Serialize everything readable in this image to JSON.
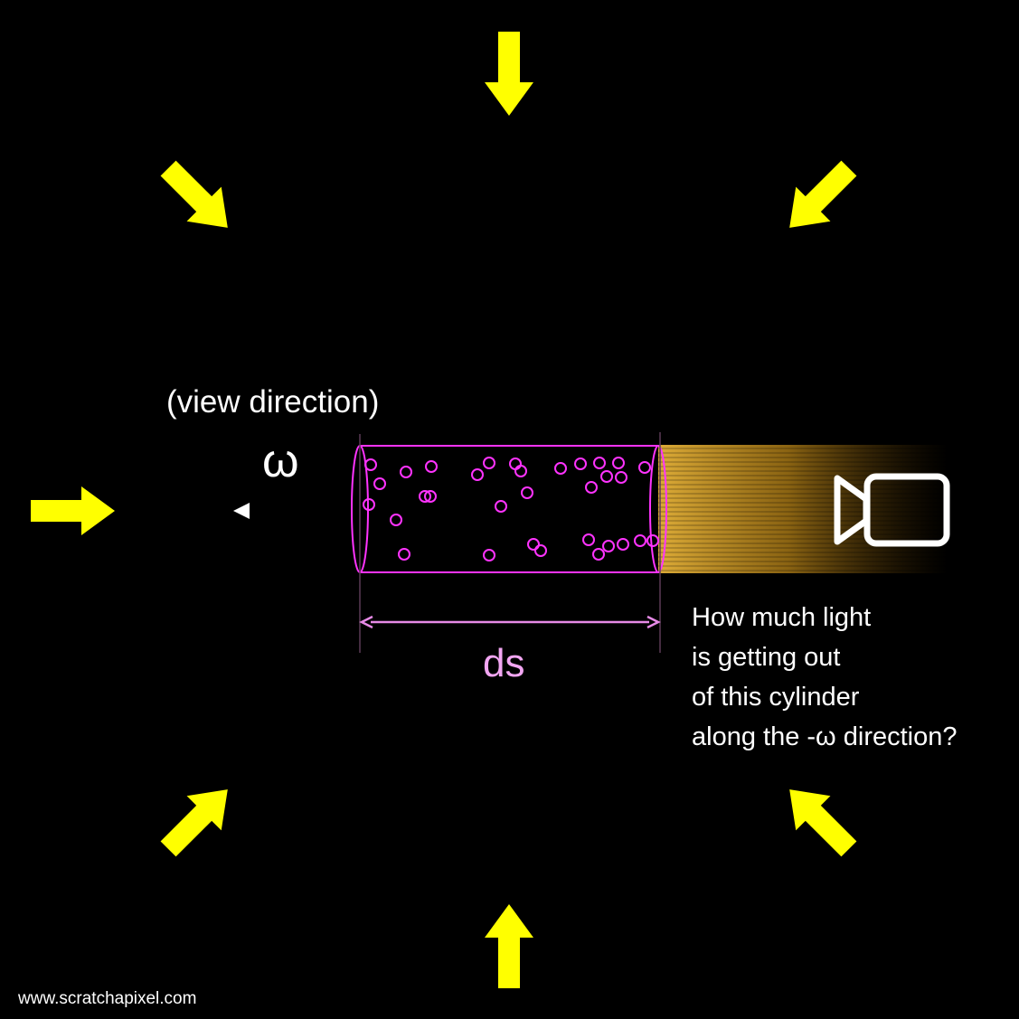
{
  "labels": {
    "view_direction": "(view direction)",
    "omega": "ω",
    "ds": "ds",
    "question_lines": [
      "How much light",
      "is getting out",
      "of this cylinder",
      "along the -ω direction?"
    ],
    "watermark": "www.scratchapixel.com"
  },
  "icons": {
    "camera": "camera-icon",
    "incoming_light": "arrow-icon"
  },
  "colors": {
    "background": "#000000",
    "light_arrows": "#FFFF00",
    "cylinder": "#FF33FF",
    "ds_label": "#F2A6F2",
    "view_ray": "#FFFFFF",
    "glow": "#D9A521",
    "text": "#FFFFFF"
  }
}
